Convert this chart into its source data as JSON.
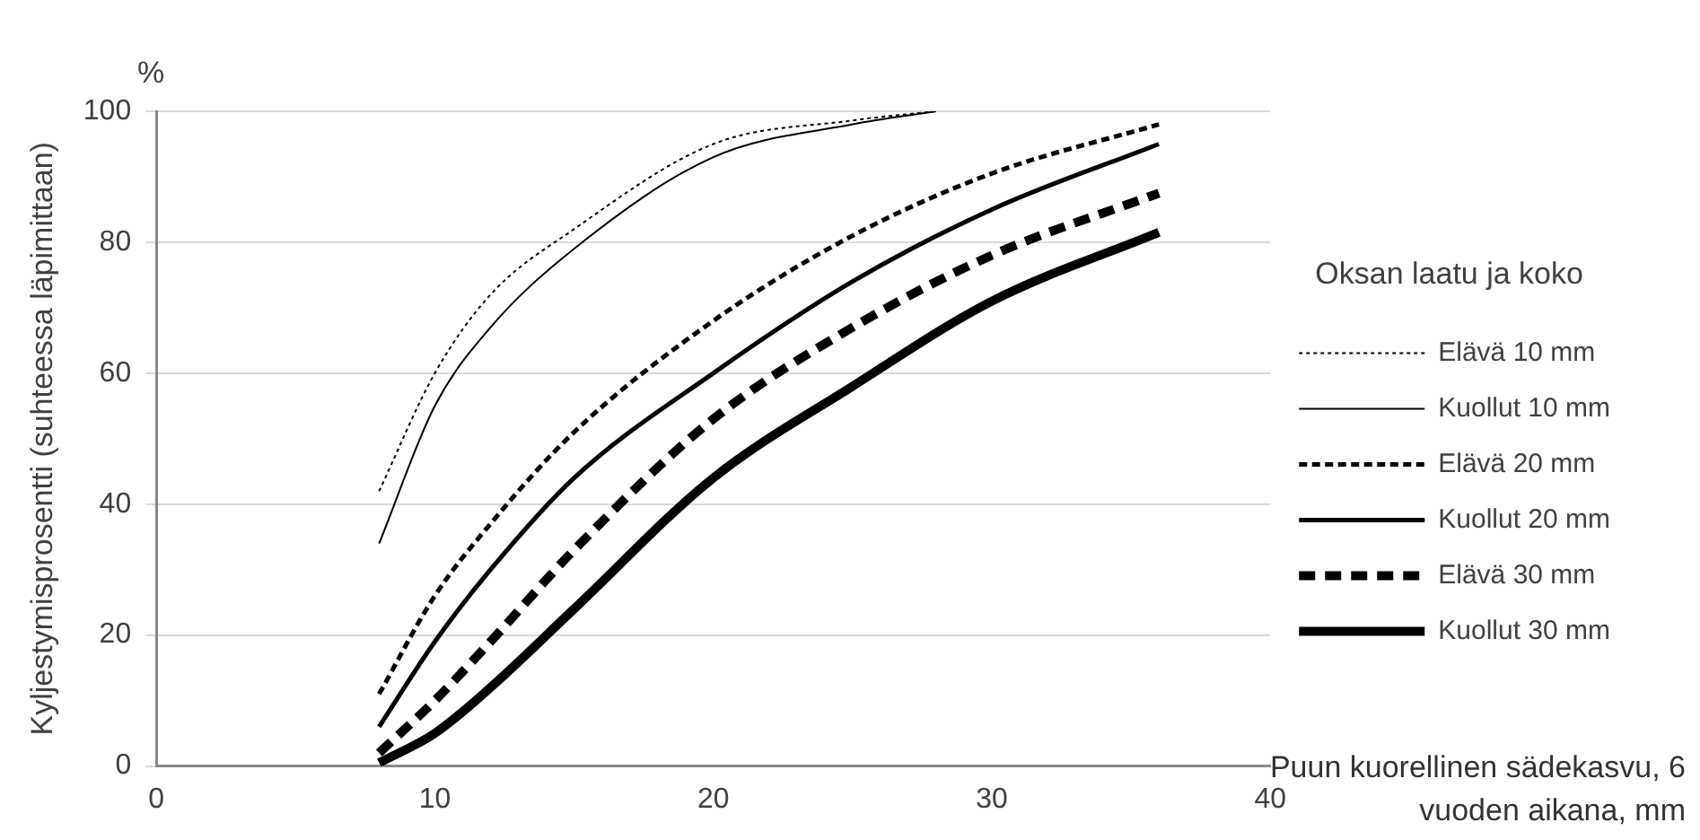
{
  "chart_data": {
    "type": "line",
    "ylabel": "Kyljestymisprosentti (suhteessa läpimittaan)",
    "xlabel": "Puun kuorellinen sädekasvu, 6 vuoden aikana, mm",
    "legend_title": "Oksan laatu ja koko",
    "annotations": [
      "%"
    ],
    "xlim": [
      0,
      40
    ],
    "xticks": [
      0,
      10,
      20,
      30,
      40
    ],
    "ylim": [
      0,
      100
    ],
    "yticks": [
      0,
      20,
      40,
      60,
      80,
      100
    ],
    "grid": "y",
    "legend": "right",
    "marker": "none",
    "series": [
      {
        "name": "Elävä 10 mm",
        "color": "#000000",
        "line_style": "dotted",
        "x": [
          8,
          10,
          12,
          15,
          20,
          25,
          28
        ],
        "values": [
          42,
          60,
          72,
          82,
          95,
          98.6,
          100
        ]
      },
      {
        "name": "Kuollut 10 mm",
        "color": "#000000",
        "line_style": "solid",
        "x": [
          8,
          10,
          12,
          15,
          20,
          25,
          28
        ],
        "values": [
          34,
          55,
          67,
          79,
          93,
          98,
          100
        ]
      },
      {
        "name": "Elävä 20 mm",
        "color": "#000000",
        "line_style": "dashed",
        "x": [
          8,
          10,
          12,
          15,
          20,
          25,
          30,
          36
        ],
        "values": [
          11,
          26,
          37,
          51,
          68,
          81,
          90.5,
          98
        ]
      },
      {
        "name": "Kuollut 20 mm",
        "color": "#000000",
        "line_style": "solid",
        "x": [
          8,
          10,
          12,
          15,
          20,
          25,
          30,
          36
        ],
        "values": [
          6,
          19,
          30,
          44,
          60,
          74,
          85,
          95
        ]
      },
      {
        "name": "Elävä 30 mm",
        "color": "#000000",
        "line_style": "dashed",
        "x": [
          8,
          10,
          12,
          15,
          20,
          25,
          30,
          36
        ],
        "values": [
          2,
          10,
          19,
          33,
          53,
          67,
          78,
          87.5
        ]
      },
      {
        "name": "Kuollut 30 mm",
        "color": "#000000",
        "line_style": "solid",
        "x": [
          8,
          10,
          12,
          15,
          20,
          25,
          30,
          36
        ],
        "values": [
          0.5,
          5,
          12,
          24,
          44,
          58,
          71,
          81.5
        ]
      }
    ]
  }
}
